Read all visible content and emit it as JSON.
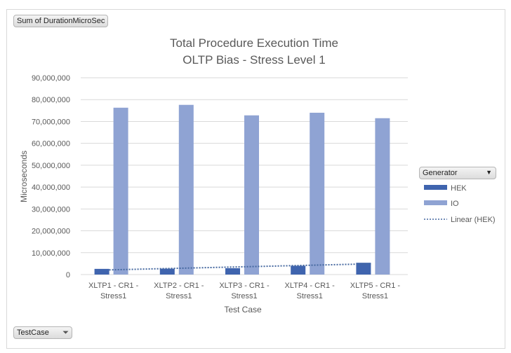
{
  "pivot_buttons": {
    "value_field": "Sum of DurationMicroSec",
    "axis_field": "TestCase",
    "legend_field": "Generator"
  },
  "chart_data": {
    "type": "bar",
    "title": "Total Procedure Execution Time",
    "subtitle": "OLTP Bias - Stress Level 1",
    "xlabel": "Test Case",
    "ylabel": "Microseconds",
    "ylim": [
      0,
      90000000
    ],
    "yticks": [
      "0",
      "10,000,000",
      "20,000,000",
      "30,000,000",
      "40,000,000",
      "50,000,000",
      "60,000,000",
      "70,000,000",
      "80,000,000",
      "90,000,000"
    ],
    "categories": [
      [
        "XLTP1 - CR1 -",
        "Stress1"
      ],
      [
        "XLTP2 - CR1 -",
        "Stress1"
      ],
      [
        "XLTP3 - CR1 -",
        "Stress1"
      ],
      [
        "XLTP4 - CR1 -",
        "Stress1"
      ],
      [
        "XLTP5 - CR1 -",
        "Stress1"
      ]
    ],
    "series": [
      {
        "name": "HEK",
        "color": "#3f64ae",
        "values": [
          2600000,
          2700000,
          2900000,
          4000000,
          5400000
        ]
      },
      {
        "name": "IO",
        "color": "#8fa3d3",
        "values": [
          76300000,
          77600000,
          72800000,
          74000000,
          71500000
        ]
      }
    ],
    "trendline": {
      "name": "Linear (HEK)",
      "type": "linear",
      "series": "HEK",
      "color": "#44679f",
      "style": "dotted"
    },
    "grid": true,
    "legend_placement": "right"
  }
}
